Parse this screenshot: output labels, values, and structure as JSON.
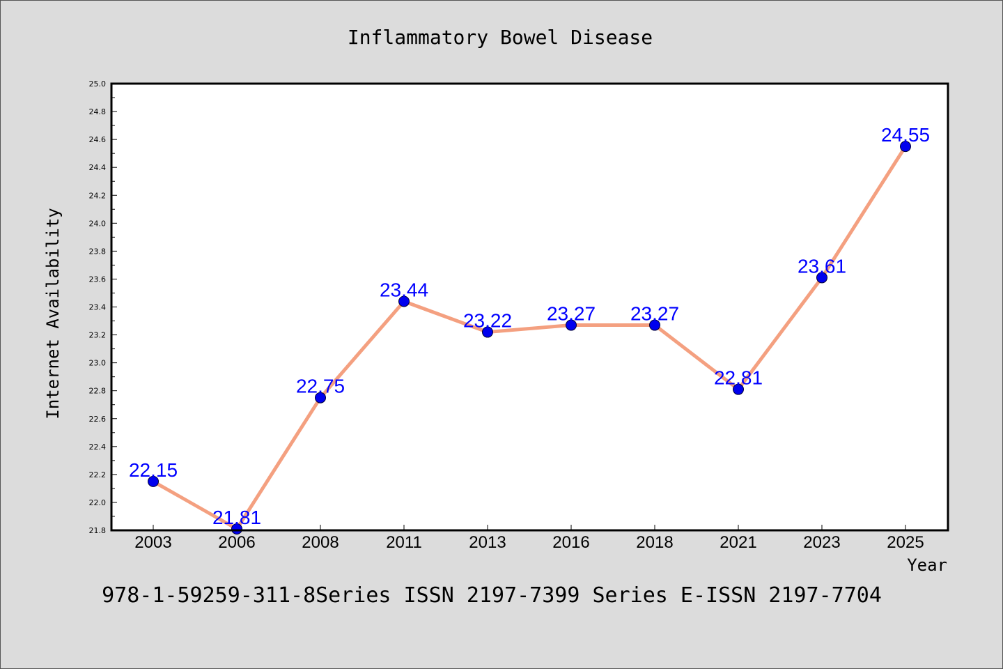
{
  "chart_data": {
    "type": "line",
    "title": "Inflammatory Bowel Disease",
    "xlabel": "Year",
    "ylabel": "Internet Availability",
    "footer": "978-1-59259-311-8Series ISSN 2197-7399 Series E-ISSN 2197-7704",
    "categories": [
      "2003",
      "2006",
      "2008",
      "2011",
      "2013",
      "2016",
      "2018",
      "2021",
      "2023",
      "2025"
    ],
    "values": [
      22.15,
      21.81,
      22.75,
      23.44,
      23.22,
      23.27,
      23.27,
      22.81,
      23.61,
      24.55
    ],
    "data_labels": [
      "22.15",
      "21.81",
      "22.75",
      "23.44",
      "23.22",
      "23.27",
      "23.27",
      "22.81",
      "23.61",
      "24.55"
    ],
    "ylim": [
      21.8,
      25.0
    ],
    "yticks": [
      "21.8",
      "22.0",
      "22.2",
      "22.4",
      "22.6",
      "22.8",
      "23.0",
      "23.2",
      "23.4",
      "23.6",
      "23.8",
      "24.0",
      "24.2",
      "24.4",
      "24.6",
      "24.8",
      "25.0"
    ],
    "grid": false,
    "colors": {
      "background": "#dcdcdc",
      "plot_background": "#ffffff",
      "line": "#f4a080",
      "marker": "#0000ee",
      "data_label": "#0000ff",
      "text": "#000000"
    }
  }
}
